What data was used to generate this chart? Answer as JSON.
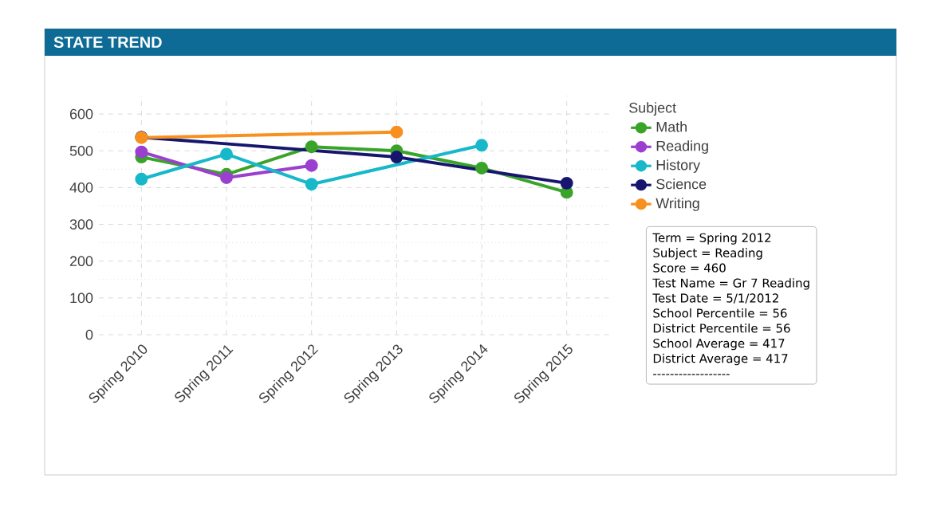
{
  "chart_data": {
    "type": "line",
    "title": "STATE TREND",
    "legend_title": "Subject",
    "categories": [
      "Spring 2010",
      "Spring 2011",
      "Spring 2012",
      "Spring 2013",
      "Spring 2014",
      "Spring 2015"
    ],
    "series": [
      {
        "name": "Math",
        "color": "#3aa329",
        "values": [
          483,
          436,
          511,
          500,
          453,
          387
        ]
      },
      {
        "name": "Reading",
        "color": "#9b3fd0",
        "values": [
          497,
          427,
          460,
          null,
          null,
          null
        ]
      },
      {
        "name": "History",
        "color": "#17b8c9",
        "values": [
          423,
          491,
          409,
          null,
          515,
          null
        ]
      },
      {
        "name": "Science",
        "color": "#16166e",
        "values": [
          537,
          null,
          null,
          483,
          null,
          412
        ]
      },
      {
        "name": "Writing",
        "color": "#f7901e",
        "values": [
          536,
          null,
          null,
          551,
          null,
          null
        ]
      }
    ],
    "ylim": [
      0,
      650
    ],
    "yticks": [
      0,
      100,
      200,
      300,
      400,
      500,
      600
    ],
    "grid": true,
    "legend": "right",
    "marker": "circle",
    "line_style": "solid",
    "annotations": [
      "Term = Spring 2012",
      "Subject = Reading",
      "Score = 460",
      "Test Name = Gr 7 Reading",
      "Test Date = 5/1/2012",
      "School Percentile = 56",
      "District Percentile = 56",
      "School Average = 417",
      "District Average = 417",
      "------------------"
    ]
  }
}
